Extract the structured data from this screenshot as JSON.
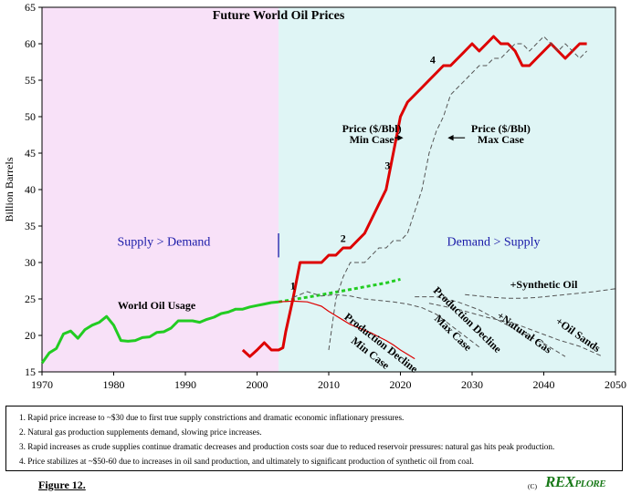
{
  "chart_data": {
    "type": "line",
    "title": "Future World Oil Prices",
    "ylabel": "Billion Barrels",
    "xlabel": "",
    "xlim": [
      1970,
      2050
    ],
    "ylim": [
      15,
      65
    ],
    "x_ticks": [
      1970,
      1980,
      1990,
      2000,
      2010,
      2020,
      2030,
      2040,
      2050
    ],
    "y_ticks": [
      15,
      20,
      25,
      30,
      35,
      40,
      45,
      50,
      55,
      60,
      65
    ],
    "regions": [
      {
        "label": "Supply > Demand",
        "from": 1970,
        "to": 2003,
        "color": "#f8e1f8"
      },
      {
        "label": "Demand > Supply",
        "from": 2003,
        "to": 2050,
        "color": "#dff5f5"
      }
    ],
    "series": [
      {
        "name": "World Oil Usage",
        "color": "#22cc22",
        "style": "solid",
        "x": [
          1970,
          1971,
          1972,
          1973,
          1974,
          1975,
          1976,
          1977,
          1978,
          1979,
          1980,
          1981,
          1982,
          1983,
          1984,
          1985,
          1986,
          1987,
          1988,
          1989,
          1990,
          1991,
          1992,
          1993,
          1994,
          1995,
          1996,
          1997,
          1998,
          1999,
          2000,
          2001,
          2002,
          2003
        ],
        "y": [
          16.2,
          17.6,
          18.2,
          20.2,
          20.6,
          19.6,
          20.8,
          21.4,
          21.8,
          22.6,
          21.4,
          19.3,
          19.2,
          19.3,
          19.7,
          19.8,
          20.4,
          20.5,
          21.0,
          22.0,
          22.0,
          22.0,
          21.8,
          22.2,
          22.5,
          23.0,
          23.2,
          23.6,
          23.6,
          23.9,
          24.1,
          24.3,
          24.5,
          24.6
        ]
      },
      {
        "name": "World Oil Usage (projected)",
        "color": "#22cc22",
        "style": "dashed",
        "x": [
          2003,
          2008,
          2013,
          2018,
          2020
        ],
        "y": [
          24.6,
          25.4,
          26.3,
          27.2,
          27.7
        ]
      },
      {
        "name": "Price ($/Bbl) Min Case",
        "color": "#dd0000",
        "style": "solid",
        "x": [
          1998,
          1999,
          2000,
          2001,
          2002,
          2003,
          2003.6,
          2004,
          2005,
          2006,
          2007,
          2008,
          2009,
          2010,
          2011,
          2012,
          2013,
          2014,
          2015,
          2016,
          2017,
          2018,
          2019,
          2020,
          2021,
          2022,
          2023,
          2024,
          2025,
          2026,
          2027,
          2028,
          2029,
          2030,
          2031,
          2032,
          2033,
          2034,
          2035,
          2036,
          2037,
          2038,
          2039,
          2040,
          2041,
          2042,
          2043,
          2044,
          2045,
          2046
        ],
        "y": [
          18.0,
          17.1,
          18.0,
          19.0,
          18.0,
          18.0,
          18.3,
          20.5,
          25.0,
          30.0,
          30.0,
          30.0,
          30.0,
          31.0,
          31.0,
          32.0,
          32.0,
          33.0,
          34.0,
          36.0,
          38.0,
          40.0,
          45.0,
          50.0,
          52.0,
          53.0,
          54.0,
          55.0,
          56.0,
          57.0,
          57.0,
          58.0,
          59.0,
          60.0,
          59.0,
          60.0,
          61.0,
          60.0,
          60.0,
          59.0,
          57.0,
          57.0,
          58.0,
          59.0,
          60.0,
          59.0,
          58.0,
          59.0,
          60.0,
          60.0
        ]
      },
      {
        "name": "Price ($/Bbl) Max Case",
        "color": "#555555",
        "style": "dashed",
        "x": [
          2010,
          2011,
          2012,
          2013,
          2014,
          2015,
          2016,
          2017,
          2018,
          2019,
          2020,
          2021,
          2022,
          2023,
          2024,
          2025,
          2026,
          2027,
          2028,
          2029,
          2030,
          2031,
          2032,
          2033,
          2034,
          2035,
          2036,
          2037,
          2038,
          2039,
          2040,
          2041,
          2042,
          2043,
          2044,
          2045,
          2046
        ],
        "y": [
          18.0,
          25.0,
          28.0,
          30.0,
          30.0,
          30.0,
          31.0,
          32.0,
          32.0,
          33.0,
          33.0,
          34.0,
          37.0,
          40.0,
          45.0,
          48.0,
          50.0,
          53.0,
          54.0,
          55.0,
          56.0,
          57.0,
          57.0,
          58.0,
          58.0,
          59.0,
          60.0,
          60.0,
          59.0,
          60.0,
          61.0,
          60.0,
          59.0,
          60.0,
          59.0,
          58.0,
          59.0
        ]
      },
      {
        "name": "Production Decline Min Case",
        "color": "#dd0000",
        "style": "solid-thin",
        "x": [
          2003,
          2005,
          2007,
          2008,
          2009,
          2010,
          2011,
          2012,
          2013,
          2014,
          2015,
          2016,
          2017,
          2018,
          2019,
          2020,
          2021,
          2022
        ],
        "y": [
          24.6,
          24.7,
          24.6,
          24.3,
          24.0,
          23.3,
          22.7,
          22.1,
          21.5,
          21.1,
          20.7,
          20.3,
          19.8,
          19.3,
          18.7,
          18.0,
          17.4,
          16.8
        ]
      },
      {
        "name": "Production Decline Max Case",
        "color": "#555555",
        "style": "dashed",
        "x": [
          2005,
          2007,
          2009,
          2011,
          2013,
          2015,
          2017,
          2019,
          2021,
          2023,
          2025,
          2027,
          2029,
          2031
        ],
        "y": [
          25.2,
          26.0,
          25.4,
          25.6,
          25.4,
          25.0,
          24.8,
          24.6,
          24.3,
          23.8,
          22.9,
          21.4,
          19.9,
          18.4
        ]
      },
      {
        "name": "+Natural Gas",
        "color": "#555555",
        "style": "dashed",
        "x": [
          2022,
          2025,
          2028,
          2031,
          2034,
          2037,
          2040,
          2043
        ],
        "y": [
          25.3,
          25.3,
          24.6,
          23.5,
          21.9,
          20.3,
          18.9,
          17.1
        ]
      },
      {
        "name": "+Oil Sands",
        "color": "#555555",
        "style": "dashed",
        "x": [
          2024,
          2028,
          2032,
          2036,
          2039,
          2042,
          2045,
          2048
        ],
        "y": [
          24.4,
          23.6,
          22.5,
          21.6,
          20.5,
          19.4,
          18.5,
          17.2
        ]
      },
      {
        "name": "+Synthetic Oil",
        "color": "#555555",
        "style": "dashed",
        "x": [
          2029,
          2031,
          2033,
          2035,
          2037,
          2039,
          2041,
          2043,
          2045,
          2047,
          2050
        ],
        "y": [
          25.6,
          25.4,
          25.2,
          25.1,
          25.1,
          25.2,
          25.4,
          25.6,
          25.8,
          26.0,
          26.4
        ]
      }
    ],
    "annotations": [
      {
        "text": "Future World Oil Prices",
        "x": 2003,
        "y": 63.4
      },
      {
        "text": "World Oil Usage",
        "x": 1986,
        "y": 23.6
      },
      {
        "text": "Supply > Demand",
        "x": 1987,
        "y": 32.3
      },
      {
        "text": "Demand > Supply",
        "x": 2033,
        "y": 32.3
      },
      {
        "text": "Price ($/Bbl)",
        "x": 2016,
        "y": 47.9
      },
      {
        "text": "Min Case",
        "x": 2016,
        "y": 46.4
      },
      {
        "text": "Price ($/Bbl)",
        "x": 2034,
        "y": 47.9
      },
      {
        "text": "Max Case",
        "x": 2034,
        "y": 46.4
      },
      {
        "text": "1",
        "x": 2005,
        "y": 26.3
      },
      {
        "text": "2",
        "x": 2012,
        "y": 32.8
      },
      {
        "text": "3",
        "x": 2018.2,
        "y": 42.8
      },
      {
        "text": "4",
        "x": 2024.5,
        "y": 57.3
      },
      {
        "text": "+Synthetic Oil",
        "x": 2040,
        "y": 26.5
      },
      {
        "text": "Production Decline",
        "x": 2017,
        "y": 18.6,
        "angle": 38
      },
      {
        "text": "Min Case",
        "x": 2015.5,
        "y": 17.2,
        "angle": 38
      },
      {
        "text": "Production Decline",
        "x": 2029,
        "y": 21.8,
        "angle": 44
      },
      {
        "text": "Max Case",
        "x": 2027,
        "y": 20.0,
        "angle": 44
      },
      {
        "text": "+Natural Gas",
        "x": 2037,
        "y": 20.0,
        "angle": 35
      },
      {
        "text": "+Oil Sands",
        "x": 2044.5,
        "y": 19.7,
        "angle": 35
      }
    ],
    "grid": false,
    "legend": "none"
  },
  "notes": [
    "1. Rapid price increase to ~$30 due to first true supply constrictions and dramatic economic inflationary pressures.",
    "2. Natural gas production supplements demand, slowing price increases.",
    "3. Rapid increases as crude supplies continue dramatic decreases and production costs soar due to reduced reservoir pressures: natural gas hits peak production.",
    "4. Price stabilizes at ~$50-60 due to increases in oil sand production, and ultimately to significant production of synthetic oil from coal."
  ],
  "figure_label": "Figure 12.",
  "copyright": "(C)",
  "logo": {
    "main": "REX",
    "small": "PLORE"
  }
}
